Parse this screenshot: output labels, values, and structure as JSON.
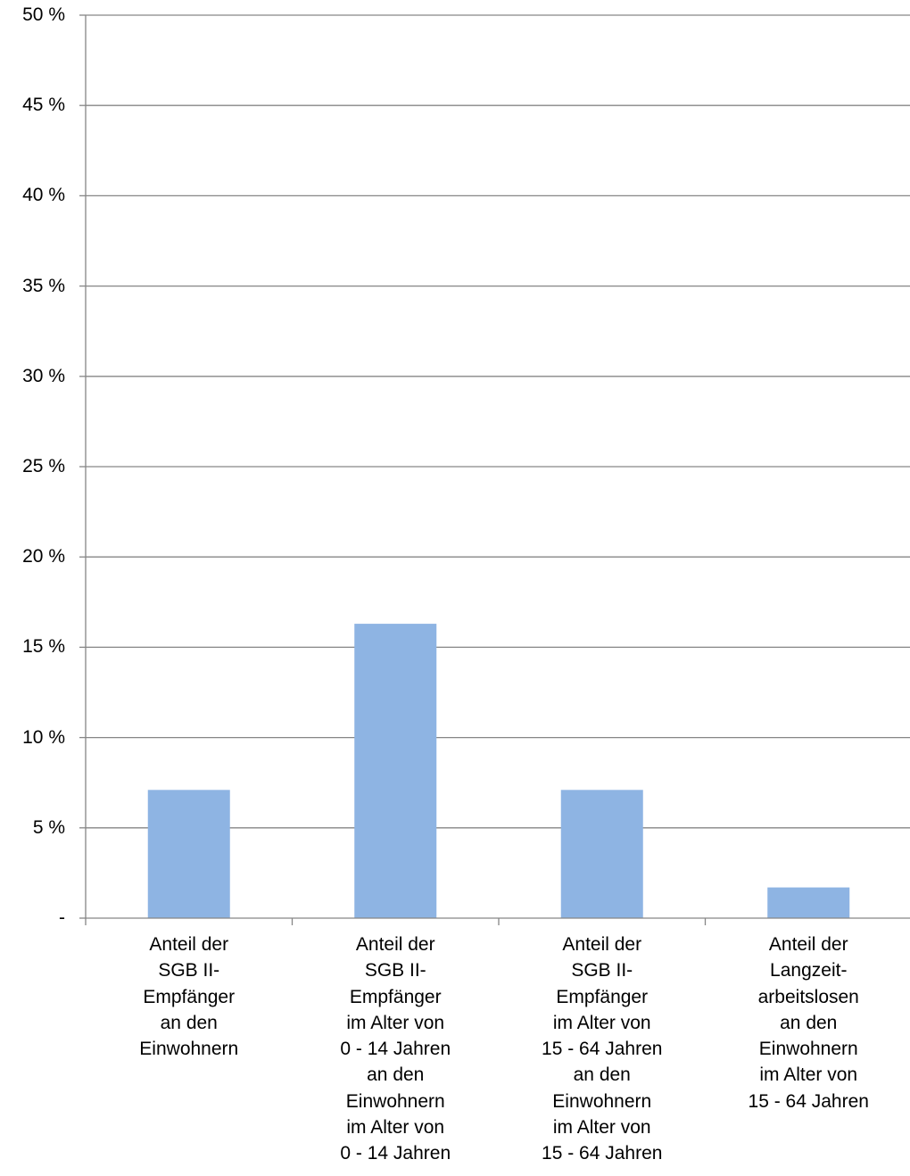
{
  "chart_data": {
    "type": "bar",
    "title": "",
    "xlabel": "",
    "ylabel": "",
    "ylim": [
      0,
      50
    ],
    "y_ticks": [
      {
        "value": 50,
        "label": "50 %"
      },
      {
        "value": 45,
        "label": "45 %"
      },
      {
        "value": 40,
        "label": "40 %"
      },
      {
        "value": 35,
        "label": "35 %"
      },
      {
        "value": 30,
        "label": "30 %"
      },
      {
        "value": 25,
        "label": "25 %"
      },
      {
        "value": 20,
        "label": "20 %"
      },
      {
        "value": 15,
        "label": "15 %"
      },
      {
        "value": 10,
        "label": "10 %"
      },
      {
        "value": 5,
        "label": "5 %"
      },
      {
        "value": 0,
        "label": "-"
      }
    ],
    "categories": [
      "Anteil der\nSGB II-\nEmpfänger\nan den\nEinwohnern",
      "Anteil der\nSGB II-\nEmpfänger\nim Alter von\n0 - 14 Jahren\nan den\nEinwohnern\nim Alter von\n0 - 14 Jahren",
      "Anteil der\nSGB II-\nEmpfänger\nim Alter von\n15 - 64 Jahren\nan den\nEinwohnern\nim Alter von\n15 - 64 Jahren",
      "Anteil der\nLangzeit-\narbeitslosen\nan den\nEinwohnern\nim Alter von\n15 - 64 Jahren"
    ],
    "values": [
      7.1,
      16.3,
      7.1,
      1.7
    ],
    "grid": true,
    "legend": "none",
    "colors": {
      "bar": "#8eb4e3",
      "grid": "#868686",
      "axis": "#868686"
    }
  }
}
